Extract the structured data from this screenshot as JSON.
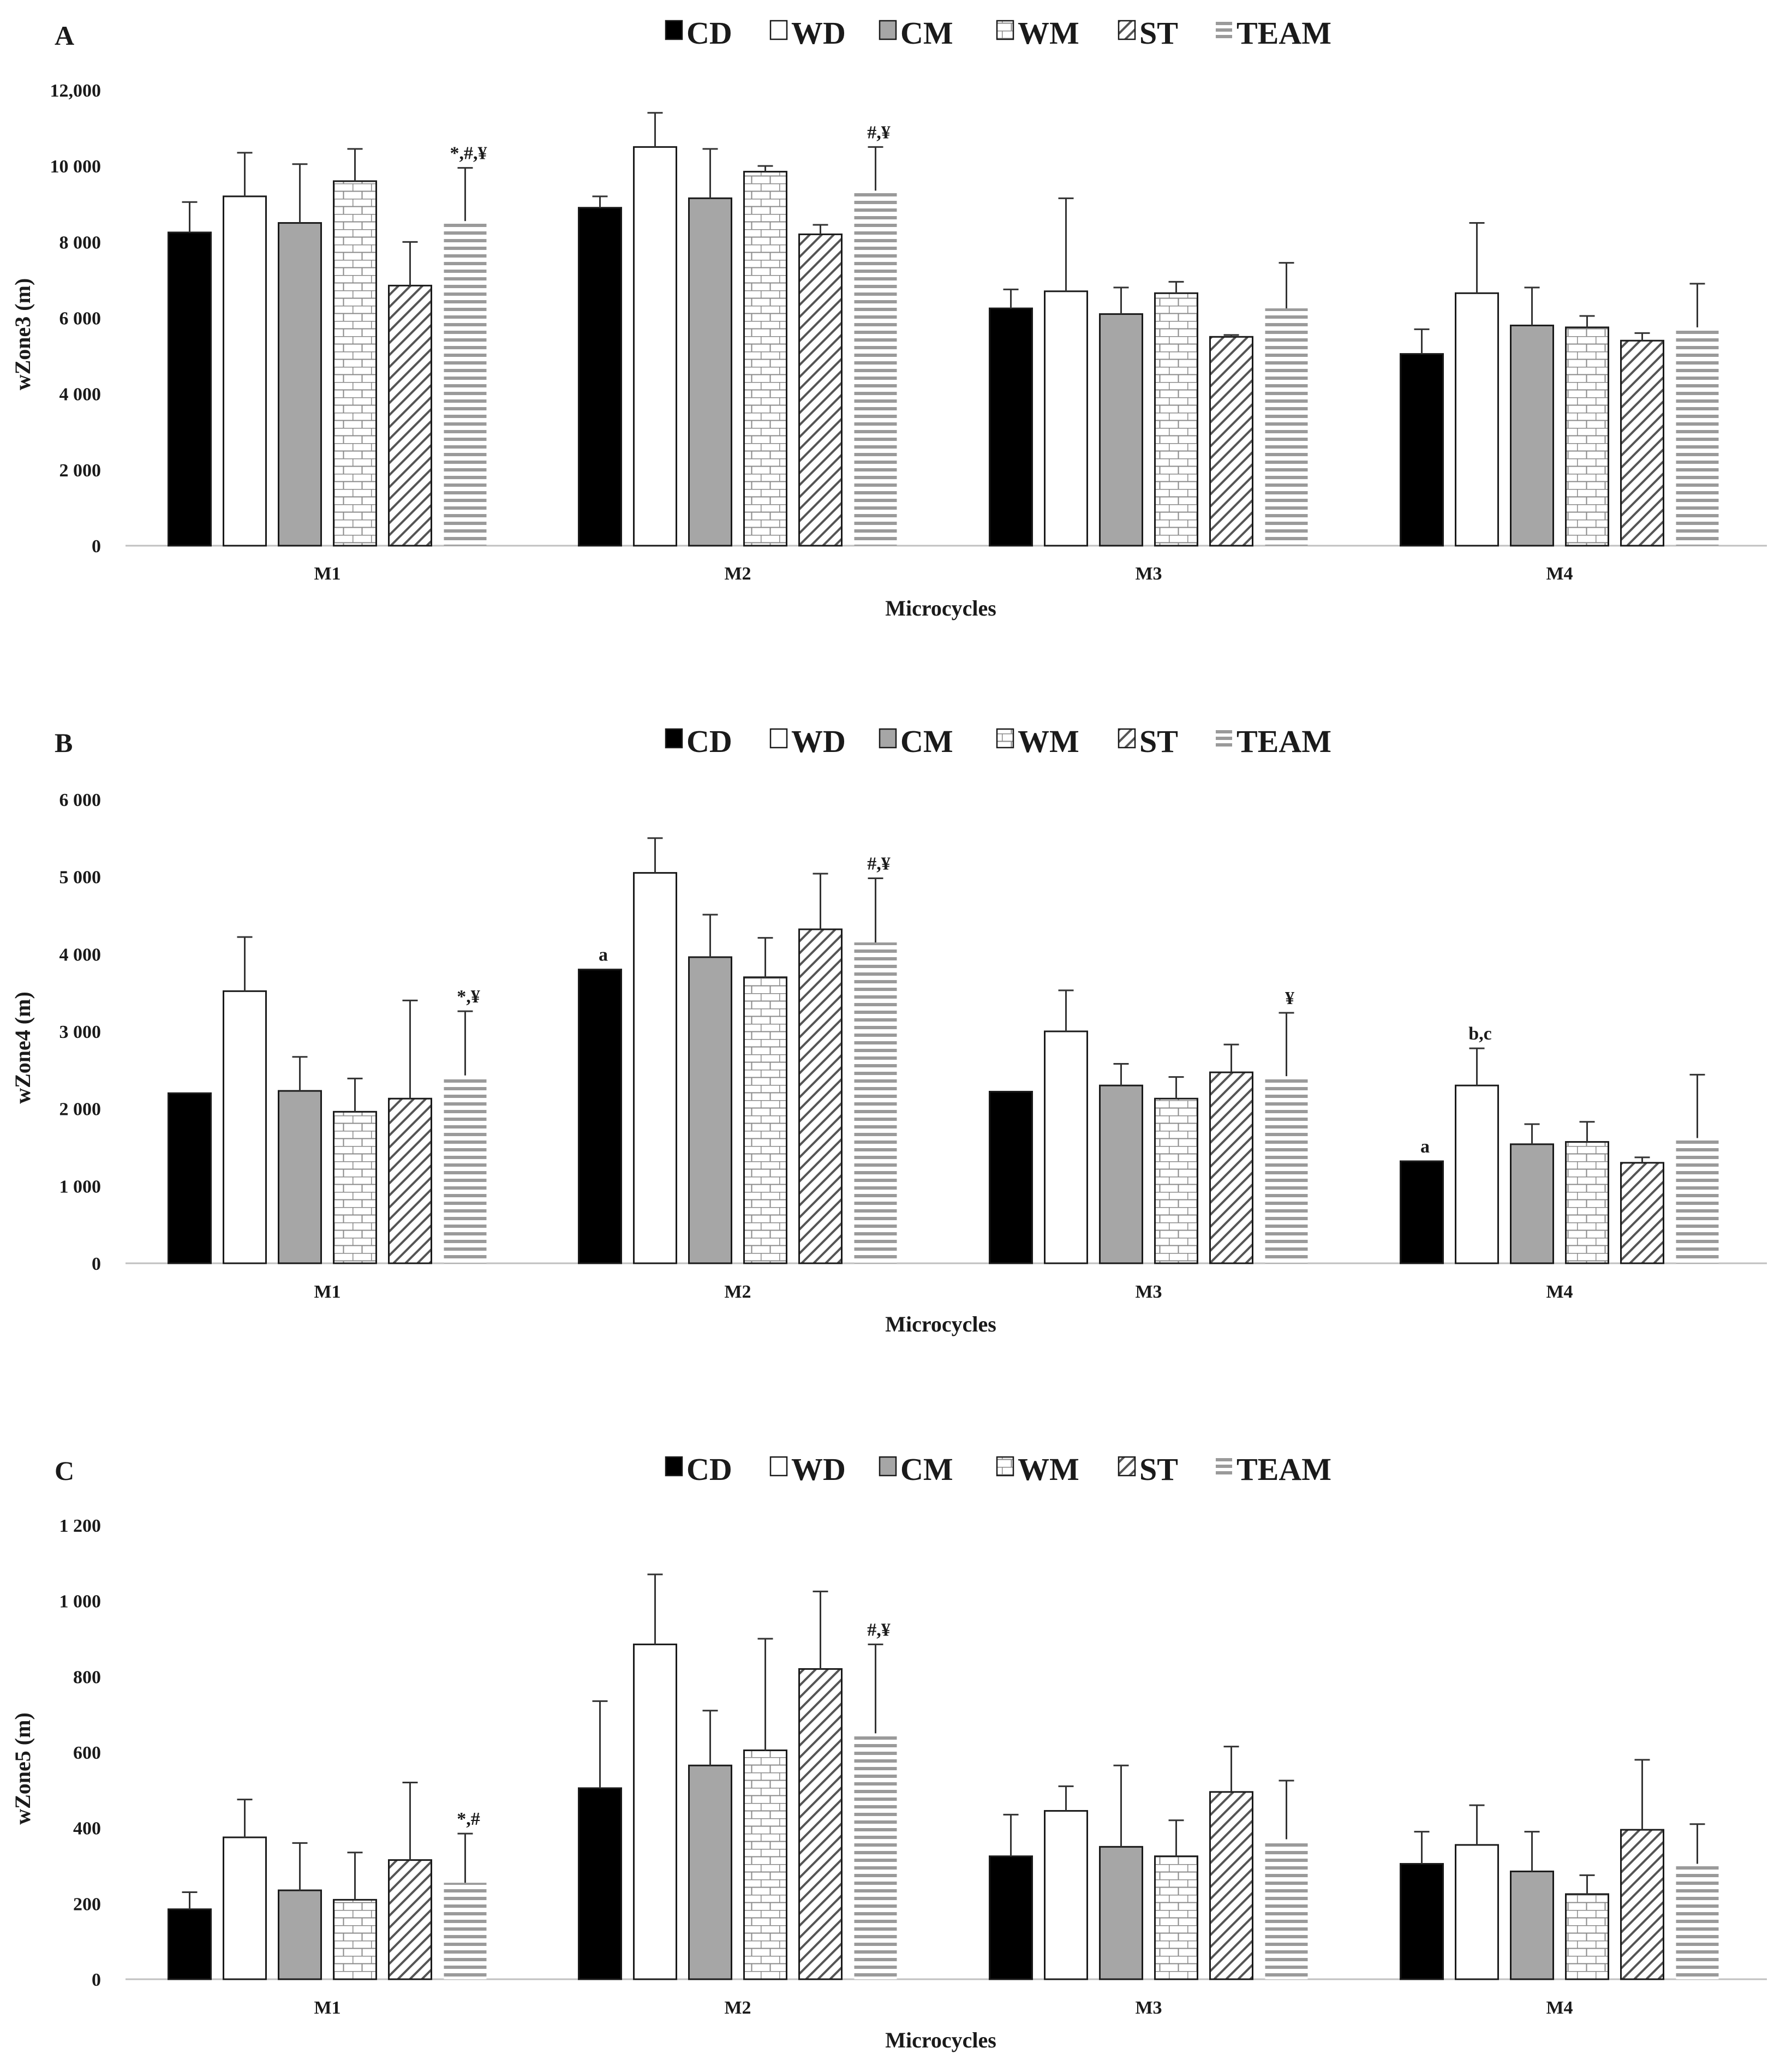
{
  "figure": {
    "legend": [
      {
        "key": "CD",
        "label": "CD",
        "pattern": "solid-black"
      },
      {
        "key": "WD",
        "label": "WD",
        "pattern": "white"
      },
      {
        "key": "CM",
        "label": "CM",
        "pattern": "gray"
      },
      {
        "key": "WM",
        "label": "WM",
        "pattern": "brick"
      },
      {
        "key": "ST",
        "label": "ST",
        "pattern": "diagonal"
      },
      {
        "key": "TEAM",
        "label": "TEAM",
        "pattern": "horizontal"
      }
    ],
    "colors": {
      "CD": "#000000",
      "CM": "#a6a6a6",
      "outline": "#1a1a1a",
      "axis": "#c0c0c0"
    }
  },
  "chart_data": [
    {
      "type": "bar",
      "panel": "A",
      "title": "",
      "xlabel": "Microcycles",
      "ylabel": "wZone3 (m)",
      "ylim": [
        0,
        12000
      ],
      "yticks": [
        0,
        2000,
        4000,
        6000,
        8000,
        10000,
        12000
      ],
      "ytick_labels": [
        "0",
        "2 000",
        "4 000",
        "6 000",
        "8 000",
        "10 000",
        "12,000"
      ],
      "categories": [
        "M1",
        "M2",
        "M3",
        "M4"
      ],
      "series": [
        {
          "name": "CD",
          "values": [
            8250,
            8900,
            6250,
            5050
          ],
          "errors": [
            800,
            300,
            500,
            650
          ]
        },
        {
          "name": "WD",
          "values": [
            9200,
            10500,
            6700,
            6650
          ],
          "errors": [
            1150,
            900,
            2450,
            1850
          ]
        },
        {
          "name": "CM",
          "values": [
            8500,
            9150,
            6100,
            5800
          ],
          "errors": [
            1550,
            1300,
            700,
            1000
          ]
        },
        {
          "name": "WM",
          "values": [
            9600,
            9850,
            6650,
            5750
          ],
          "errors": [
            850,
            150,
            300,
            300
          ]
        },
        {
          "name": "ST",
          "values": [
            6850,
            8200,
            5500,
            5400
          ],
          "errors": [
            1150,
            250,
            50,
            200
          ]
        },
        {
          "name": "TEAM",
          "values": [
            8550,
            9350,
            6250,
            5750
          ],
          "errors": [
            1400,
            1150,
            1200,
            1150
          ]
        }
      ],
      "annotations": [
        {
          "category": "M1",
          "series": "TEAM",
          "text": "*,#,¥"
        },
        {
          "category": "M2",
          "series": "TEAM",
          "text": "#,¥"
        }
      ]
    },
    {
      "type": "bar",
      "panel": "B",
      "title": "",
      "xlabel": "Microcycles",
      "ylabel": "wZone4 (m)",
      "ylim": [
        0,
        6000
      ],
      "yticks": [
        0,
        1000,
        2000,
        3000,
        4000,
        5000,
        6000
      ],
      "ytick_labels": [
        "0",
        "1 000",
        "2 000",
        "3 000",
        "4 000",
        "5 000",
        "6 000"
      ],
      "categories": [
        "M1",
        "M2",
        "M3",
        "M4"
      ],
      "series": [
        {
          "name": "CD",
          "values": [
            2200,
            3800,
            2220,
            1320
          ],
          "errors": [
            0,
            0,
            0,
            0
          ]
        },
        {
          "name": "WD",
          "values": [
            3520,
            5050,
            3000,
            2300
          ],
          "errors": [
            700,
            450,
            530,
            480
          ]
        },
        {
          "name": "CM",
          "values": [
            2230,
            3960,
            2300,
            1540
          ],
          "errors": [
            440,
            550,
            280,
            260
          ]
        },
        {
          "name": "WM",
          "values": [
            1960,
            3700,
            2130,
            1570
          ],
          "errors": [
            430,
            510,
            280,
            260
          ]
        },
        {
          "name": "ST",
          "values": [
            2130,
            4320,
            2470,
            1300
          ],
          "errors": [
            1270,
            720,
            360,
            70
          ]
        },
        {
          "name": "TEAM",
          "values": [
            2430,
            4150,
            2420,
            1620
          ],
          "errors": [
            830,
            830,
            820,
            820
          ]
        }
      ],
      "annotations": [
        {
          "category": "M1",
          "series": "TEAM",
          "text": "*,¥"
        },
        {
          "category": "M2",
          "series": "CD",
          "text": "a"
        },
        {
          "category": "M2",
          "series": "TEAM",
          "text": "#,¥"
        },
        {
          "category": "M3",
          "series": "TEAM",
          "text": "¥"
        },
        {
          "category": "M4",
          "series": "CD",
          "text": "a"
        },
        {
          "category": "M4",
          "series": "WD",
          "text": "b,c"
        }
      ]
    },
    {
      "type": "bar",
      "panel": "C",
      "title": "",
      "xlabel": "Microcycles",
      "ylabel": "wZone5 (m)",
      "ylim": [
        0,
        1200
      ],
      "yticks": [
        0,
        200,
        400,
        600,
        800,
        1000,
        1200
      ],
      "ytick_labels": [
        "0",
        "200",
        "400",
        "600",
        "800",
        "1 000",
        "1 200"
      ],
      "categories": [
        "M1",
        "M2",
        "M3",
        "M4"
      ],
      "series": [
        {
          "name": "CD",
          "values": [
            185,
            505,
            325,
            305
          ],
          "errors": [
            45,
            230,
            110,
            85
          ]
        },
        {
          "name": "WD",
          "values": [
            375,
            885,
            445,
            355
          ],
          "errors": [
            100,
            185,
            65,
            105
          ]
        },
        {
          "name": "CM",
          "values": [
            235,
            565,
            350,
            285
          ],
          "errors": [
            125,
            145,
            215,
            105
          ]
        },
        {
          "name": "WM",
          "values": [
            210,
            605,
            325,
            225
          ],
          "errors": [
            125,
            295,
            95,
            50
          ]
        },
        {
          "name": "ST",
          "values": [
            315,
            820,
            495,
            395
          ],
          "errors": [
            205,
            205,
            120,
            185
          ]
        },
        {
          "name": "TEAM",
          "values": [
            255,
            650,
            370,
            305
          ],
          "errors": [
            130,
            235,
            155,
            105
          ]
        }
      ],
      "annotations": [
        {
          "category": "M1",
          "series": "TEAM",
          "text": "*,#"
        },
        {
          "category": "M2",
          "series": "TEAM",
          "text": "#,¥"
        }
      ]
    }
  ]
}
